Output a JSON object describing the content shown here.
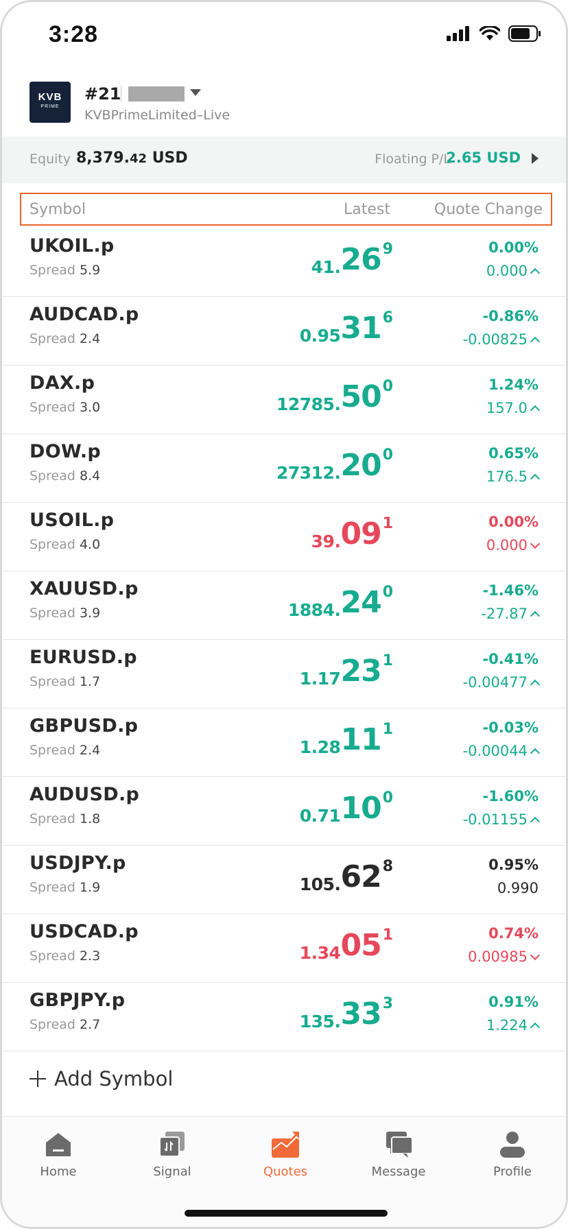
{
  "status_bar": {
    "time": "3:28"
  },
  "account": {
    "logo_text": "KVB",
    "logo_sub": "PRIME",
    "number": "#21",
    "server": "KVBPrimeLimited–Live"
  },
  "equity": {
    "label": "Equity",
    "value_int": "8,379.",
    "value_dec": "42",
    "currency": "USD",
    "pl_label": "Floating P/L",
    "pl_value": "2.65 USD"
  },
  "columns": {
    "symbol": "Symbol",
    "latest": "Latest",
    "change": "Quote Change"
  },
  "spread_label": "Spread",
  "quotes": [
    {
      "symbol": "UKOIL.p",
      "spread": "5.9",
      "price_small": "41.",
      "price_big": "26",
      "price_sup": "9",
      "change_pct": "0.00%",
      "change_abs": "0.000",
      "color": "green",
      "direction": "up"
    },
    {
      "symbol": "AUDCAD.p",
      "spread": "2.4",
      "price_small": "0.95",
      "price_big": "31",
      "price_sup": "6",
      "change_pct": "-0.86%",
      "change_abs": "-0.00825",
      "color": "green",
      "direction": "up"
    },
    {
      "symbol": "DAX.p",
      "spread": "3.0",
      "price_small": "12785.",
      "price_big": "50",
      "price_sup": "0",
      "change_pct": "1.24%",
      "change_abs": "157.0",
      "color": "green",
      "direction": "up"
    },
    {
      "symbol": "DOW.p",
      "spread": "8.4",
      "price_small": "27312.",
      "price_big": "20",
      "price_sup": "0",
      "change_pct": "0.65%",
      "change_abs": "176.5",
      "color": "green",
      "direction": "up"
    },
    {
      "symbol": "USOIL.p",
      "spread": "4.0",
      "price_small": "39.",
      "price_big": "09",
      "price_sup": "1",
      "change_pct": "0.00%",
      "change_abs": "0.000",
      "color": "red",
      "direction": "down"
    },
    {
      "symbol": "XAUUSD.p",
      "spread": "3.9",
      "price_small": "1884.",
      "price_big": "24",
      "price_sup": "0",
      "change_pct": "-1.46%",
      "change_abs": "-27.87",
      "color": "green",
      "direction": "up"
    },
    {
      "symbol": "EURUSD.p",
      "spread": "1.7",
      "price_small": "1.17",
      "price_big": "23",
      "price_sup": "1",
      "change_pct": "-0.41%",
      "change_abs": "-0.00477",
      "color": "green",
      "direction": "up"
    },
    {
      "symbol": "GBPUSD.p",
      "spread": "2.4",
      "price_small": "1.28",
      "price_big": "11",
      "price_sup": "1",
      "change_pct": "-0.03%",
      "change_abs": "-0.00044",
      "color": "green",
      "direction": "up"
    },
    {
      "symbol": "AUDUSD.p",
      "spread": "1.8",
      "price_small": "0.71",
      "price_big": "10",
      "price_sup": "0",
      "change_pct": "-1.60%",
      "change_abs": "-0.01155",
      "color": "green",
      "direction": "up"
    },
    {
      "symbol": "USDJPY.p",
      "spread": "1.9",
      "price_small": "105.",
      "price_big": "62",
      "price_sup": "8",
      "change_pct": "0.95%",
      "change_abs": "0.990",
      "color": "dark",
      "direction": "none"
    },
    {
      "symbol": "USDCAD.p",
      "spread": "2.3",
      "price_small": "1.34",
      "price_big": "05",
      "price_sup": "1",
      "change_pct": "0.74%",
      "change_abs": "0.00985",
      "color": "red",
      "direction": "down"
    },
    {
      "symbol": "GBPJPY.p",
      "spread": "2.7",
      "price_small": "135.",
      "price_big": "33",
      "price_sup": "3",
      "change_pct": "0.91%",
      "change_abs": "1.224",
      "color": "green",
      "direction": "up"
    }
  ],
  "add_symbol": "Add Symbol",
  "tabs": [
    {
      "label": "Home",
      "icon": "home-icon",
      "active": false
    },
    {
      "label": "Signal",
      "icon": "signal-icon",
      "active": false
    },
    {
      "label": "Quotes",
      "icon": "quotes-icon",
      "active": true
    },
    {
      "label": "Message",
      "icon": "message-icon",
      "active": false
    },
    {
      "label": "Profile",
      "icon": "profile-icon",
      "active": false
    }
  ],
  "colors": {
    "green": "#17ab8f",
    "red": "#e5485a",
    "accent": "#f06a3a",
    "header_border": "#e8652a"
  }
}
